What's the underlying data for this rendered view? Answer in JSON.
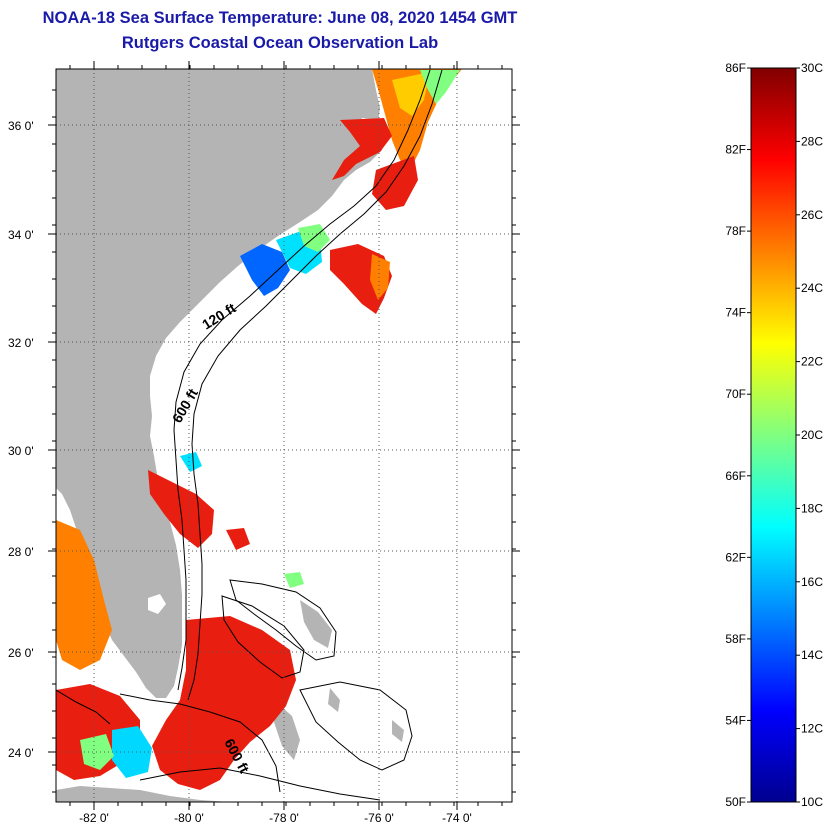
{
  "header": {
    "title": "NOAA-18 Sea Surface Temperature:  June 08, 2020 1454 GMT",
    "subtitle": "Rutgers Coastal Ocean Observation Lab"
  },
  "map": {
    "lon_range": [
      -83,
      -73
    ],
    "lat_range": [
      23.2,
      37.1
    ],
    "lat_ticks": [
      {
        "value": 36,
        "label": "36 0'"
      },
      {
        "value": 34,
        "label": "34 0'"
      },
      {
        "value": 32,
        "label": "32 0'"
      },
      {
        "value": 30,
        "label": "30 0'"
      },
      {
        "value": 28,
        "label": "28 0'"
      },
      {
        "value": 26,
        "label": "26 0'"
      },
      {
        "value": 24,
        "label": "24 0'"
      }
    ],
    "lon_ticks": [
      {
        "value": -82,
        "label": "-82 0'"
      },
      {
        "value": -80,
        "label": "-80 0'"
      },
      {
        "value": -78,
        "label": "-78 0'"
      },
      {
        "value": -76,
        "label": "-76 0'"
      },
      {
        "value": -74,
        "label": "-74 0'"
      }
    ],
    "contour_labels": [
      {
        "text": "120 ft"
      },
      {
        "text": "600 ft"
      },
      {
        "text": "600 ft"
      }
    ],
    "colors": {
      "land": "#b4b4b4",
      "water_nodata": "#ffffff",
      "contour": "#000000"
    }
  },
  "colorbar": {
    "min_c": 10,
    "max_c": 30,
    "fahrenheit_labels": [
      "86F",
      "82F",
      "78F",
      "74F",
      "70F",
      "66F",
      "62F",
      "58F",
      "54F",
      "50F"
    ],
    "celsius_labels": [
      "30C",
      "28C",
      "26C",
      "24C",
      "22C",
      "20C",
      "18C",
      "16C",
      "14C",
      "12C",
      "10C"
    ],
    "colors": [
      "#00008f",
      "#0000ff",
      "#0080ff",
      "#00ffff",
      "#80ff80",
      "#ffff00",
      "#ff8000",
      "#ff0000",
      "#800000"
    ]
  }
}
